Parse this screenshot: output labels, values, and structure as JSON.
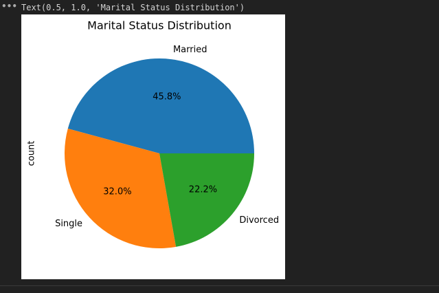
{
  "output_text": "Text(0.5, 1.0, 'Marital Status Distribution')",
  "chart_data": {
    "type": "pie",
    "title": "Marital Status Distribution",
    "ylabel": "count",
    "categories": [
      "Married",
      "Single",
      "Divorced"
    ],
    "values": [
      45.8,
      32.0,
      22.2
    ],
    "value_labels": [
      "45.8%",
      "32.0%",
      "22.2%"
    ],
    "colors": [
      "#1f77b4",
      "#ff7f0e",
      "#2ca02c"
    ]
  }
}
